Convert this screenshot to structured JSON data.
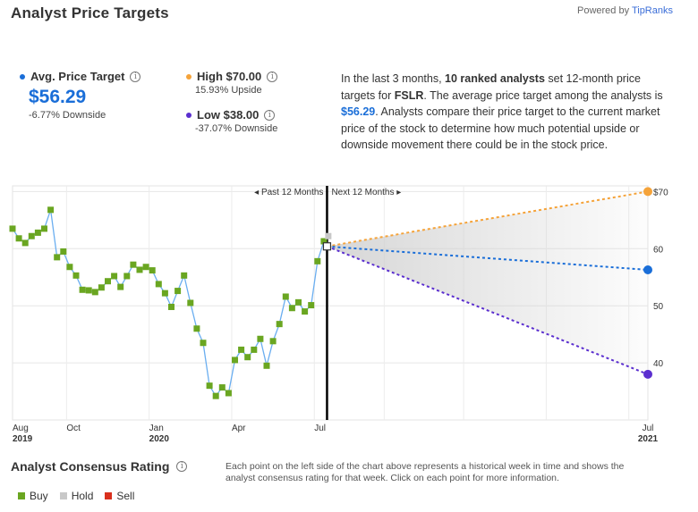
{
  "header": {
    "title": "Analyst Price Targets",
    "powered_prefix": "Powered by",
    "powered_brand": "TipRanks"
  },
  "stats": {
    "avg": {
      "label": "Avg. Price Target",
      "value": "$56.29",
      "change": "-6.77% Downside",
      "color": "#1a6ed8"
    },
    "high": {
      "label": "High $70.00",
      "change": "15.93% Upside",
      "color": "#f5a33a"
    },
    "low": {
      "label": "Low $38.00",
      "change": "-37.07% Downside",
      "color": "#5b2fcf"
    }
  },
  "description": {
    "part1": "In the last 3 months, ",
    "bold1": "10 ranked analysts",
    "part2": " set 12-month price targets for ",
    "bold2": "FSLR",
    "part3": ". The average price target among the analysts is ",
    "value": "$56.29",
    "part4": ". Analysts compare their price target to the current market price of the stock to determine how much potential upside or downside movement there could be in the stock price."
  },
  "chart_data": {
    "type": "line",
    "period_labels": {
      "past": "Past 12 Months",
      "next": "Next 12 Months"
    },
    "y_ticks": [
      "$70",
      "60",
      "50",
      "40"
    ],
    "y_tick_values": [
      70,
      60,
      50,
      40
    ],
    "ylim": [
      30,
      71
    ],
    "x_tick_labels": [
      {
        "label": "Aug",
        "sub": "2019",
        "t": 0
      },
      {
        "label": "Oct",
        "sub": "",
        "t": 8.5
      },
      {
        "label": "Jan",
        "sub": "2020",
        "t": 21.5
      },
      {
        "label": "Apr",
        "sub": "",
        "t": 34.5
      },
      {
        "label": "Jul",
        "sub": "",
        "t": 47.5
      },
      {
        "label": "Jul",
        "sub": "2021",
        "t": 100
      }
    ],
    "t_current": 49.5,
    "t_end": 100,
    "current_price": 60.4,
    "price_series": [
      {
        "t": 0,
        "v": 63.5
      },
      {
        "t": 1,
        "v": 61.8
      },
      {
        "t": 2,
        "v": 61.0
      },
      {
        "t": 3,
        "v": 62.2
      },
      {
        "t": 4,
        "v": 62.8
      },
      {
        "t": 5,
        "v": 63.5
      },
      {
        "t": 6,
        "v": 66.8
      },
      {
        "t": 7,
        "v": 58.5
      },
      {
        "t": 8,
        "v": 59.5
      },
      {
        "t": 9,
        "v": 56.8
      },
      {
        "t": 10,
        "v": 55.3
      },
      {
        "t": 11,
        "v": 52.8
      },
      {
        "t": 12,
        "v": 52.7
      },
      {
        "t": 13,
        "v": 52.4
      },
      {
        "t": 14,
        "v": 53.2
      },
      {
        "t": 15,
        "v": 54.3
      },
      {
        "t": 16,
        "v": 55.2
      },
      {
        "t": 17,
        "v": 53.3
      },
      {
        "t": 18,
        "v": 55.2
      },
      {
        "t": 19,
        "v": 57.2
      },
      {
        "t": 20,
        "v": 56.3
      },
      {
        "t": 21,
        "v": 56.8
      },
      {
        "t": 22,
        "v": 56.2
      },
      {
        "t": 23,
        "v": 53.8
      },
      {
        "t": 24,
        "v": 52.2
      },
      {
        "t": 25,
        "v": 49.8
      },
      {
        "t": 26,
        "v": 52.6
      },
      {
        "t": 27,
        "v": 55.3
      },
      {
        "t": 28,
        "v": 50.5
      },
      {
        "t": 29,
        "v": 46.0
      },
      {
        "t": 30,
        "v": 43.5
      },
      {
        "t": 31,
        "v": 36.0
      },
      {
        "t": 32,
        "v": 34.2
      },
      {
        "t": 33,
        "v": 35.7
      },
      {
        "t": 34,
        "v": 34.7
      },
      {
        "t": 35,
        "v": 40.5
      },
      {
        "t": 36,
        "v": 42.3
      },
      {
        "t": 37,
        "v": 41.0
      },
      {
        "t": 38,
        "v": 42.3
      },
      {
        "t": 39,
        "v": 44.2
      },
      {
        "t": 40,
        "v": 39.5
      },
      {
        "t": 41,
        "v": 43.8
      },
      {
        "t": 42,
        "v": 46.8
      },
      {
        "t": 43,
        "v": 51.6
      },
      {
        "t": 44,
        "v": 49.6
      },
      {
        "t": 45,
        "v": 50.6
      },
      {
        "t": 46,
        "v": 49.0
      },
      {
        "t": 47,
        "v": 50.1
      },
      {
        "t": 48,
        "v": 57.8
      },
      {
        "t": 49,
        "v": 61.3
      }
    ],
    "rating_series": [
      {
        "t": 0,
        "r": "Buy"
      },
      {
        "t": 1,
        "r": "Buy"
      },
      {
        "t": 2,
        "r": "Buy"
      },
      {
        "t": 3,
        "r": "Buy"
      },
      {
        "t": 4,
        "r": "Buy"
      },
      {
        "t": 5,
        "r": "Buy"
      },
      {
        "t": 6,
        "r": "Buy"
      },
      {
        "t": 7,
        "r": "Buy"
      },
      {
        "t": 8,
        "r": "Buy"
      },
      {
        "t": 9,
        "r": "Buy"
      },
      {
        "t": 10,
        "r": "Buy"
      },
      {
        "t": 11,
        "r": "Buy"
      },
      {
        "t": 12,
        "r": "Buy"
      },
      {
        "t": 13,
        "r": "Buy"
      },
      {
        "t": 14,
        "r": "Buy"
      },
      {
        "t": 15,
        "r": "Buy"
      },
      {
        "t": 16,
        "r": "Buy"
      },
      {
        "t": 17,
        "r": "Buy"
      },
      {
        "t": 18,
        "r": "Buy"
      },
      {
        "t": 19,
        "r": "Buy"
      },
      {
        "t": 20,
        "r": "Buy"
      },
      {
        "t": 21,
        "r": "Buy"
      },
      {
        "t": 22,
        "r": "Buy"
      },
      {
        "t": 23,
        "r": "Buy"
      },
      {
        "t": 24,
        "r": "Buy"
      },
      {
        "t": 25,
        "r": "Buy"
      },
      {
        "t": 26,
        "r": "Buy"
      },
      {
        "t": 27,
        "r": "Buy"
      },
      {
        "t": 28,
        "r": "Buy"
      },
      {
        "t": 29,
        "r": "Buy"
      },
      {
        "t": 30,
        "r": "Buy"
      },
      {
        "t": 31,
        "r": "Buy"
      },
      {
        "t": 32,
        "r": "Buy"
      },
      {
        "t": 33,
        "r": "Buy"
      },
      {
        "t": 34,
        "r": "Buy"
      },
      {
        "t": 35,
        "r": "Buy"
      },
      {
        "t": 36,
        "r": "Buy"
      },
      {
        "t": 37,
        "r": "Buy"
      },
      {
        "t": 38,
        "r": "Buy"
      },
      {
        "t": 39,
        "r": "Buy"
      },
      {
        "t": 40,
        "r": "Buy"
      },
      {
        "t": 41,
        "r": "Buy"
      },
      {
        "t": 42,
        "r": "Buy"
      },
      {
        "t": 43,
        "r": "Buy"
      },
      {
        "t": 44,
        "r": "Buy"
      },
      {
        "t": 45,
        "r": "Buy"
      },
      {
        "t": 46,
        "r": "Buy"
      },
      {
        "t": 47,
        "r": "Buy"
      },
      {
        "t": 48,
        "r": "Buy"
      },
      {
        "t": 49,
        "r": "Buy"
      },
      {
        "t": 49.7,
        "r": "Hold"
      }
    ],
    "targets": [
      {
        "name": "High",
        "value": 70.0,
        "color": "#f5a33a"
      },
      {
        "name": "Average",
        "value": 56.29,
        "color": "#1a6ed8"
      },
      {
        "name": "Low",
        "value": 38.0,
        "color": "#5b2fcf"
      }
    ],
    "line_color": "#6aaef0",
    "grid": true
  },
  "consensus": {
    "title": "Analyst Consensus Rating",
    "description": "Each point on the left side of the chart above represents a historical week in time and shows the analyst consensus rating for that week. Click on each point for more information.",
    "legend": [
      {
        "label": "Buy",
        "color": "#6aa621"
      },
      {
        "label": "Hold",
        "color": "#c8c8c8"
      },
      {
        "label": "Sell",
        "color": "#d9301d"
      }
    ]
  }
}
